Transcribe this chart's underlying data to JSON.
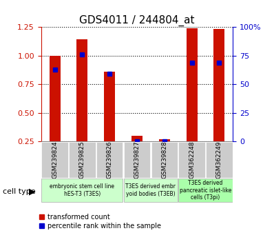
{
  "title": "GDS4011 / 244804_at",
  "samples": [
    "GSM239824",
    "GSM239825",
    "GSM239826",
    "GSM239827",
    "GSM239828",
    "GSM362248",
    "GSM362249"
  ],
  "transformed_count": [
    1.0,
    1.14,
    0.86,
    0.3,
    0.27,
    1.24,
    1.23
  ],
  "percentile_rank": [
    0.88,
    1.01,
    0.84,
    0.25,
    0.25,
    0.94,
    0.94
  ],
  "ylim_left": [
    0.25,
    1.25
  ],
  "ylim_right": [
    0,
    100
  ],
  "yticks_left": [
    0.25,
    0.5,
    0.75,
    1.0,
    1.25
  ],
  "yticks_right": [
    0,
    25,
    50,
    75,
    100
  ],
  "bar_color": "#cc1100",
  "dot_color": "#0000cc",
  "cell_type_groups": [
    {
      "label": "embryonic stem cell line\nhES-T3 (T3ES)",
      "start": 0,
      "end": 3,
      "color": "#ccffcc"
    },
    {
      "label": "T3ES derived embr\nyoid bodies (T3EB)",
      "start": 3,
      "end": 5,
      "color": "#ccffcc"
    },
    {
      "label": "T3ES derived\npancreatic islet-like\ncells (T3pi)",
      "start": 5,
      "end": 7,
      "color": "#aaffaa"
    }
  ],
  "cell_type_label": "cell type",
  "legend_transformed": "transformed count",
  "legend_percentile": "percentile rank within the sample",
  "bar_width": 0.4,
  "tick_bg_color": "#cccccc"
}
